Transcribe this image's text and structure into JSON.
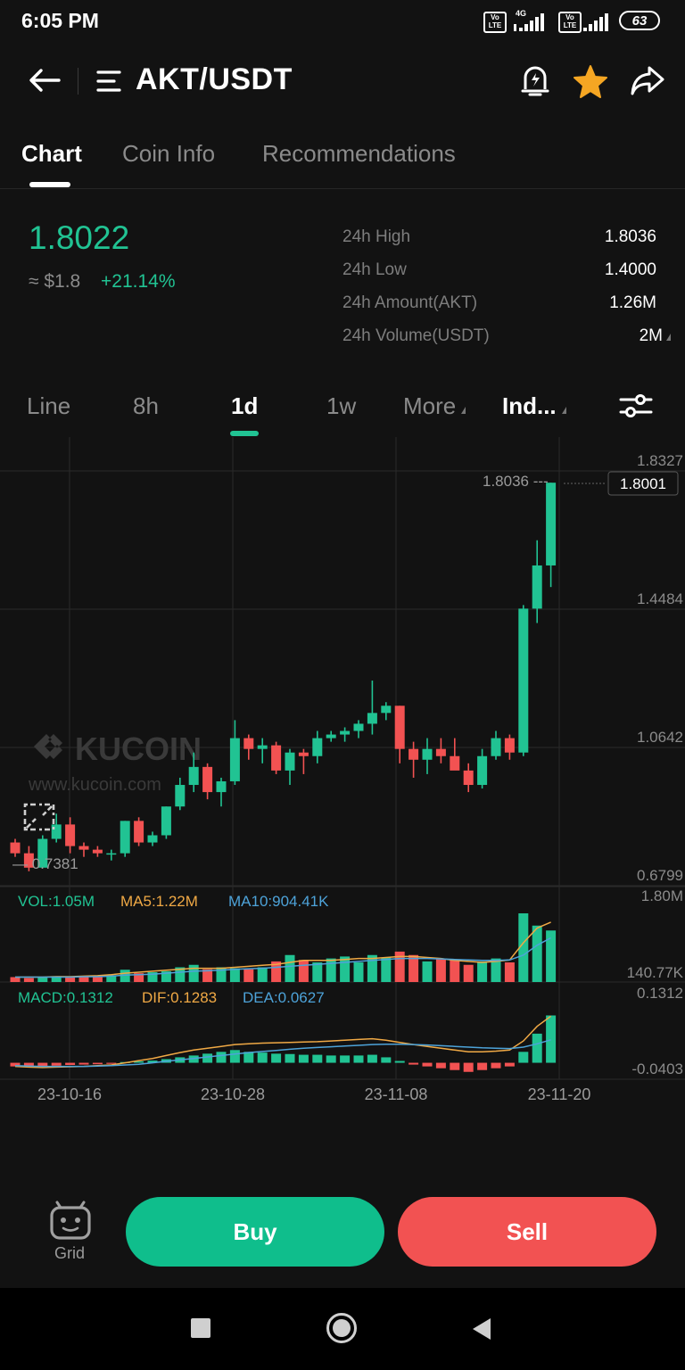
{
  "status_bar": {
    "time": "6:05 PM",
    "network_label": "4G",
    "volte_label": "Vo LTE",
    "battery": "63"
  },
  "header": {
    "pair": "AKT/USDT"
  },
  "tabs": [
    {
      "label": "Chart",
      "active": true
    },
    {
      "label": "Coin Info",
      "active": false
    },
    {
      "label": "Recommendations",
      "active": false
    }
  ],
  "ticker": {
    "price": "1.8022",
    "price_usd": "≈ $1.8",
    "change": "+21.14%",
    "stats": [
      {
        "label": "24h High",
        "value": "1.8036"
      },
      {
        "label": "24h Low",
        "value": "1.4000"
      },
      {
        "label": "24h Amount(AKT)",
        "value": "1.26M"
      },
      {
        "label": "24h Volume(USDT)",
        "value": "2M"
      }
    ]
  },
  "interval_tabs": [
    {
      "label": "Line",
      "active": false
    },
    {
      "label": "8h",
      "active": false
    },
    {
      "label": "1d",
      "active": true
    },
    {
      "label": "1w",
      "active": false
    },
    {
      "label": "More",
      "active": false
    },
    {
      "label": "Ind...",
      "active": false
    }
  ],
  "colors": {
    "up": "#21c393",
    "down": "#f25252",
    "ma5": "#f0a945",
    "ma10": "#4da3d9",
    "background": "#121212"
  },
  "chart_data": {
    "type": "candlestick",
    "watermark": "KUCOIN",
    "watermark_url": "www.kucoin.com",
    "price_axis_labels": [
      "1.8327",
      "1.4484",
      "1.0642",
      "0.6799"
    ],
    "y_range": [
      0.6799,
      1.8327
    ],
    "last_price_tag": "1.8001",
    "high_marker": "1.8036",
    "low_marker": "0.7381",
    "date_labels": [
      "23-10-16",
      "23-10-28",
      "23-11-08",
      "23-11-20"
    ],
    "candles": [
      {
        "o": 0.8,
        "h": 0.81,
        "l": 0.76,
        "c": 0.77
      },
      {
        "o": 0.77,
        "h": 0.79,
        "l": 0.72,
        "c": 0.73
      },
      {
        "o": 0.73,
        "h": 0.82,
        "l": 0.73,
        "c": 0.81
      },
      {
        "o": 0.81,
        "h": 0.88,
        "l": 0.8,
        "c": 0.85
      },
      {
        "o": 0.85,
        "h": 0.87,
        "l": 0.77,
        "c": 0.79
      },
      {
        "o": 0.79,
        "h": 0.8,
        "l": 0.76,
        "c": 0.78
      },
      {
        "o": 0.78,
        "h": 0.79,
        "l": 0.76,
        "c": 0.77
      },
      {
        "o": 0.77,
        "h": 0.78,
        "l": 0.75,
        "c": 0.77
      },
      {
        "o": 0.77,
        "h": 0.86,
        "l": 0.76,
        "c": 0.86
      },
      {
        "o": 0.86,
        "h": 0.87,
        "l": 0.79,
        "c": 0.8
      },
      {
        "o": 0.8,
        "h": 0.83,
        "l": 0.79,
        "c": 0.82
      },
      {
        "o": 0.82,
        "h": 0.9,
        "l": 0.81,
        "c": 0.9
      },
      {
        "o": 0.9,
        "h": 0.98,
        "l": 0.89,
        "c": 0.96
      },
      {
        "o": 0.96,
        "h": 1.05,
        "l": 0.94,
        "c": 1.01
      },
      {
        "o": 1.01,
        "h": 1.02,
        "l": 0.92,
        "c": 0.94
      },
      {
        "o": 0.94,
        "h": 0.98,
        "l": 0.9,
        "c": 0.97
      },
      {
        "o": 0.97,
        "h": 1.14,
        "l": 0.96,
        "c": 1.09
      },
      {
        "o": 1.09,
        "h": 1.1,
        "l": 1.03,
        "c": 1.06
      },
      {
        "o": 1.06,
        "h": 1.09,
        "l": 1.02,
        "c": 1.07
      },
      {
        "o": 1.07,
        "h": 1.08,
        "l": 0.99,
        "c": 1.0
      },
      {
        "o": 1.0,
        "h": 1.06,
        "l": 0.96,
        "c": 1.05
      },
      {
        "o": 1.05,
        "h": 1.06,
        "l": 0.99,
        "c": 1.04
      },
      {
        "o": 1.04,
        "h": 1.11,
        "l": 1.02,
        "c": 1.09
      },
      {
        "o": 1.09,
        "h": 1.11,
        "l": 1.08,
        "c": 1.1
      },
      {
        "o": 1.1,
        "h": 1.12,
        "l": 1.08,
        "c": 1.11
      },
      {
        "o": 1.11,
        "h": 1.14,
        "l": 1.09,
        "c": 1.13
      },
      {
        "o": 1.13,
        "h": 1.25,
        "l": 1.1,
        "c": 1.16
      },
      {
        "o": 1.16,
        "h": 1.19,
        "l": 1.14,
        "c": 1.18
      },
      {
        "o": 1.18,
        "h": 1.18,
        "l": 1.02,
        "c": 1.06
      },
      {
        "o": 1.06,
        "h": 1.08,
        "l": 0.98,
        "c": 1.03
      },
      {
        "o": 1.03,
        "h": 1.09,
        "l": 0.99,
        "c": 1.06
      },
      {
        "o": 1.06,
        "h": 1.09,
        "l": 1.02,
        "c": 1.04
      },
      {
        "o": 1.04,
        "h": 1.09,
        "l": 1.01,
        "c": 1.0
      },
      {
        "o": 1.0,
        "h": 1.02,
        "l": 0.94,
        "c": 0.96
      },
      {
        "o": 0.96,
        "h": 1.06,
        "l": 0.95,
        "c": 1.04
      },
      {
        "o": 1.04,
        "h": 1.11,
        "l": 1.03,
        "c": 1.09
      },
      {
        "o": 1.09,
        "h": 1.1,
        "l": 1.03,
        "c": 1.05
      },
      {
        "o": 1.05,
        "h": 1.46,
        "l": 1.04,
        "c": 1.45
      },
      {
        "o": 1.45,
        "h": 1.64,
        "l": 1.41,
        "c": 1.57
      },
      {
        "o": 1.57,
        "h": 1.8,
        "l": 1.51,
        "c": 1.8
      }
    ],
    "volume": {
      "label": "VOL:1.05M",
      "ma5_label": "MA5:1.22M",
      "ma10_label": "MA10:904.41K",
      "axis_max": "1.80M",
      "axis_min": "140.77K",
      "values_m": [
        0.1,
        0.08,
        0.09,
        0.12,
        0.11,
        0.1,
        0.12,
        0.14,
        0.25,
        0.18,
        0.2,
        0.22,
        0.3,
        0.35,
        0.26,
        0.3,
        0.28,
        0.26,
        0.3,
        0.42,
        0.55,
        0.45,
        0.4,
        0.48,
        0.52,
        0.4,
        0.55,
        0.5,
        0.62,
        0.55,
        0.42,
        0.48,
        0.45,
        0.35,
        0.42,
        0.48,
        0.4,
        1.4,
        1.15,
        1.05
      ],
      "ma5_m": [
        0.1,
        0.1,
        0.1,
        0.11,
        0.11,
        0.12,
        0.13,
        0.15,
        0.18,
        0.2,
        0.22,
        0.24,
        0.26,
        0.28,
        0.28,
        0.28,
        0.3,
        0.32,
        0.34,
        0.36,
        0.4,
        0.44,
        0.44,
        0.44,
        0.46,
        0.48,
        0.48,
        0.5,
        0.52,
        0.52,
        0.5,
        0.48,
        0.44,
        0.42,
        0.4,
        0.42,
        0.45,
        0.8,
        1.1,
        1.22
      ],
      "ma10_m": [
        0.1,
        0.1,
        0.1,
        0.1,
        0.1,
        0.11,
        0.11,
        0.12,
        0.14,
        0.15,
        0.16,
        0.18,
        0.2,
        0.22,
        0.23,
        0.24,
        0.26,
        0.27,
        0.28,
        0.3,
        0.32,
        0.34,
        0.36,
        0.38,
        0.4,
        0.42,
        0.44,
        0.46,
        0.48,
        0.48,
        0.48,
        0.47,
        0.46,
        0.45,
        0.44,
        0.44,
        0.45,
        0.55,
        0.75,
        0.9
      ]
    },
    "macd": {
      "label": "MACD:0.1312",
      "dif_label": "DIF:0.1283",
      "dea_label": "DEA:0.0627",
      "axis_max": "0.1312",
      "axis_min": "-0.0403",
      "hist": [
        -0.01,
        -0.012,
        -0.01,
        -0.008,
        -0.006,
        -0.005,
        -0.004,
        -0.003,
        0.002,
        0.004,
        0.006,
        0.01,
        0.015,
        0.02,
        0.025,
        0.03,
        0.035,
        0.03,
        0.028,
        0.025,
        0.024,
        0.022,
        0.022,
        0.02,
        0.02,
        0.02,
        0.022,
        0.015,
        0.005,
        -0.005,
        -0.01,
        -0.015,
        -0.02,
        -0.025,
        -0.02,
        -0.015,
        -0.01,
        0.03,
        0.08,
        0.13
      ],
      "dif": [
        -0.01,
        -0.012,
        -0.013,
        -0.012,
        -0.011,
        -0.01,
        -0.008,
        -0.006,
        0.0,
        0.006,
        0.012,
        0.02,
        0.028,
        0.035,
        0.04,
        0.045,
        0.05,
        0.052,
        0.054,
        0.055,
        0.056,
        0.057,
        0.058,
        0.06,
        0.062,
        0.064,
        0.066,
        0.062,
        0.056,
        0.05,
        0.045,
        0.04,
        0.035,
        0.03,
        0.03,
        0.032,
        0.035,
        0.06,
        0.1,
        0.128
      ],
      "dea": [
        -0.008,
        -0.009,
        -0.01,
        -0.01,
        -0.01,
        -0.01,
        -0.009,
        -0.008,
        -0.006,
        -0.004,
        0.0,
        0.004,
        0.008,
        0.012,
        0.016,
        0.02,
        0.024,
        0.028,
        0.031,
        0.034,
        0.037,
        0.04,
        0.042,
        0.044,
        0.046,
        0.048,
        0.05,
        0.051,
        0.051,
        0.05,
        0.049,
        0.047,
        0.045,
        0.043,
        0.041,
        0.04,
        0.039,
        0.043,
        0.052,
        0.063
      ]
    }
  },
  "bottom": {
    "grid_label": "Grid",
    "buy_label": "Buy",
    "sell_label": "Sell"
  }
}
